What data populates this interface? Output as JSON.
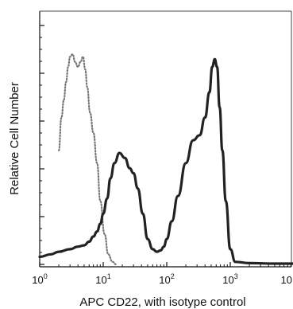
{
  "chart_data": {
    "type": "line",
    "title": "",
    "xlabel": "APC CD22, with isotype control",
    "ylabel": "Relative Cell Number",
    "x_scale": "log",
    "xlim": [
      1,
      10000
    ],
    "ylim": [
      0,
      100
    ],
    "x_ticks": [
      {
        "base": "10",
        "exp": "0"
      },
      {
        "base": "10",
        "exp": "1"
      },
      {
        "base": "10",
        "exp": "2"
      },
      {
        "base": "10",
        "exp": "3"
      },
      {
        "base": "10",
        "exp": ""
      }
    ],
    "grid": false,
    "series": [
      {
        "role": "isotype-control",
        "style": "dotted",
        "color": "#777777",
        "x": [
          2.0,
          2.2,
          2.4,
          2.6,
          2.8,
          3.0,
          3.3,
          3.6,
          4.0,
          4.4,
          4.8,
          5.2,
          5.6,
          6.2,
          7.0,
          8.0,
          9.0,
          10.5,
          12.0,
          14.0,
          16.0
        ],
        "y": [
          45,
          58,
          65,
          72,
          78,
          82,
          83,
          80,
          78,
          80,
          82,
          77,
          70,
          60,
          52,
          40,
          25,
          12,
          4,
          1,
          0
        ]
      },
      {
        "role": "cd22-stained",
        "style": "solid",
        "color": "#222222",
        "x": [
          1.0,
          1.5,
          2.0,
          3.0,
          4.0,
          5.0,
          6.0,
          7.0,
          8.0,
          9.0,
          10.0,
          11.5,
          13.0,
          15.0,
          18.0,
          22.0,
          26.0,
          30.0,
          35.0,
          42.0,
          50.0,
          60.0,
          70.0,
          80.0,
          90.0,
          100.0,
          120.0,
          150.0,
          200.0,
          260.0,
          330.0,
          400.0,
          470.0,
          520.0,
          570.0,
          620.0,
          680.0,
          750.0,
          850.0,
          1000.0,
          1200.0,
          2000.0,
          5000.0,
          10000.0
        ],
        "y": [
          3,
          4,
          5,
          6,
          7,
          7.5,
          9,
          11,
          13,
          16,
          20,
          26,
          34,
          40,
          44,
          42,
          38,
          36,
          30,
          20,
          10,
          6,
          5,
          5.5,
          7,
          10,
          17,
          27,
          40,
          49,
          51,
          58,
          68,
          78,
          81,
          78,
          62,
          45,
          25,
          6,
          1,
          0.5,
          0.3,
          0.3
        ]
      }
    ]
  }
}
